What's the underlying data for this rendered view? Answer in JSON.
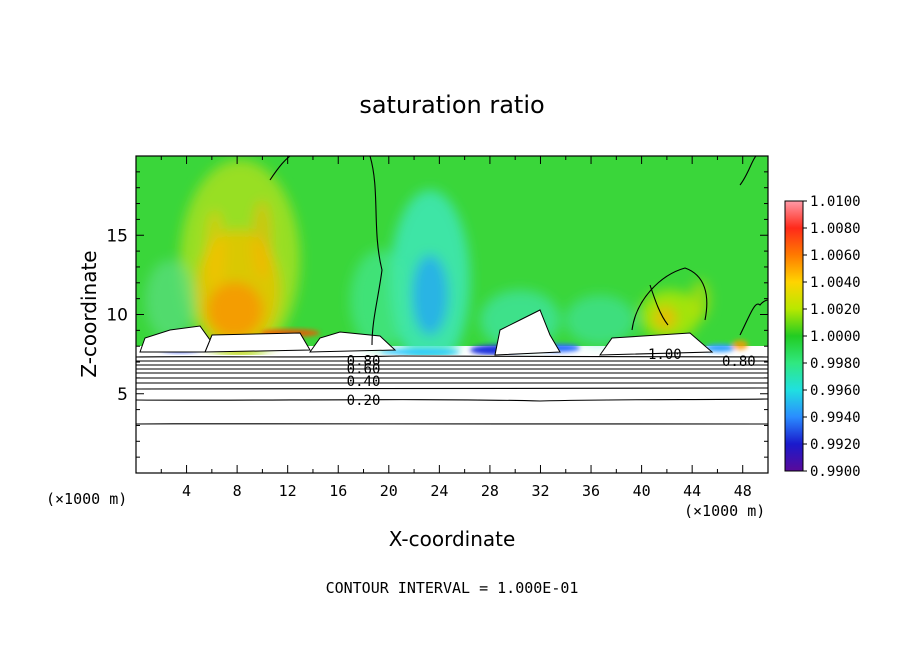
{
  "chart_data": {
    "type": "heatmap",
    "title": "saturation ratio",
    "xlabel": "X-coordinate",
    "ylabel": "Z-coordinate",
    "x_unit_left": "(×1000 m)",
    "x_unit_right": "(×1000 m)",
    "footer": "CONTOUR INTERVAL = 1.000E-01",
    "xlim": [
      0,
      50
    ],
    "ylim": [
      0,
      20
    ],
    "x_ticks": [
      4,
      8,
      12,
      16,
      20,
      24,
      28,
      32,
      36,
      40,
      44,
      48
    ],
    "y_ticks": [
      5,
      10,
      15
    ],
    "colorbar": {
      "range": [
        0.99,
        1.01
      ],
      "labels": [
        "1.0100",
        "1.0080",
        "1.0060",
        "1.0040",
        "1.0020",
        "1.0000",
        "0.9980",
        "0.9960",
        "0.9940",
        "0.9920",
        "0.9900"
      ],
      "colors": [
        "#ff9aa8",
        "#ff2a1a",
        "#ff7a00",
        "#ffd400",
        "#b8e800",
        "#22cc22",
        "#30e880",
        "#20e0e0",
        "#2a8cff",
        "#1a1acc",
        "#5a0a9a"
      ]
    },
    "contours": [
      {
        "label": "0.20",
        "z": 4.6
      },
      {
        "label": "0.40",
        "z": 5.8
      },
      {
        "label": "0.60",
        "z": 6.6
      },
      {
        "label": "0.80",
        "z": 7.1
      },
      {
        "label": "1.00",
        "z": 7.6
      }
    ],
    "contour_label_extra": [
      "0.80",
      "1.00",
      "0.80"
    ],
    "background_value": 1.0,
    "features": [
      {
        "name": "moist plume",
        "x_range": [
          5,
          12
        ],
        "z_range": [
          8.5,
          19
        ],
        "max_value": 1.006
      },
      {
        "name": "dry column",
        "x_range": [
          22,
          25
        ],
        "z_range": [
          8,
          15
        ],
        "min_value": 0.996
      },
      {
        "name": "moist plume",
        "x_range": [
          40,
          46
        ],
        "z_range": [
          8.5,
          12
        ],
        "max_value": 1.004
      }
    ]
  }
}
